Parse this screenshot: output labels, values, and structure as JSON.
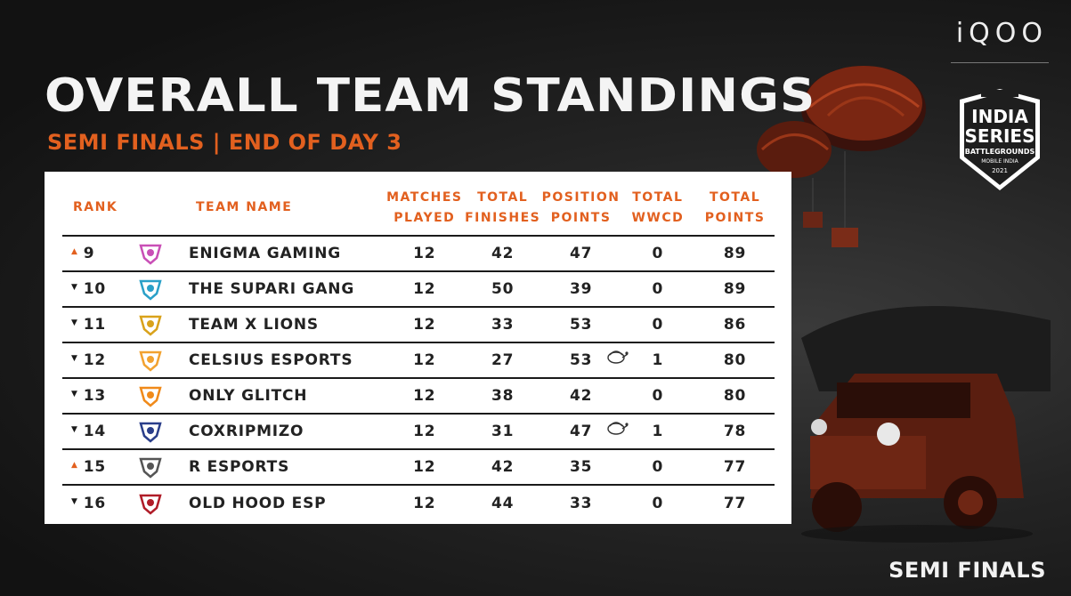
{
  "header": {
    "brand": "iQOO",
    "title": "OVERALL TEAM STANDINGS",
    "subtitle": "SEMI FINALS | END OF DAY 3",
    "badge_lines": [
      "INDIA",
      "SERIES",
      "BATTLEGROUNDS",
      "MOBILE INDIA",
      "2021"
    ]
  },
  "table": {
    "columns": {
      "rank": "RANK",
      "team": "TEAM NAME",
      "matches_played": [
        "MATCHES",
        "PLAYED"
      ],
      "total_finishes": [
        "TOTAL",
        "FINISHES"
      ],
      "position_points": [
        "POSITION",
        "POINTS"
      ],
      "total_wwcd": [
        "TOTAL",
        "WWCD"
      ],
      "total_points": [
        "TOTAL",
        "POINTS"
      ]
    },
    "rows": [
      {
        "trend": "up",
        "rank": "9",
        "team": "ENIGMA GAMING",
        "mp": "12",
        "tf": "42",
        "pp": "47",
        "wwcd": "0",
        "tp": "89",
        "chicken": false,
        "logo_color": "#c94fb6",
        "logo_icon": "enigma-logo-icon"
      },
      {
        "trend": "down",
        "rank": "10",
        "team": "THE SUPARI GANG",
        "mp": "12",
        "tf": "50",
        "pp": "39",
        "wwcd": "0",
        "tp": "89",
        "chicken": false,
        "logo_color": "#2aa0c8",
        "logo_icon": "tsg-logo-icon"
      },
      {
        "trend": "down",
        "rank": "11",
        "team": "TEAM X LIONS",
        "mp": "12",
        "tf": "33",
        "pp": "53",
        "wwcd": "0",
        "tp": "86",
        "chicken": false,
        "logo_color": "#d9a21b",
        "logo_icon": "lion-logo-icon"
      },
      {
        "trend": "down",
        "rank": "12",
        "team": "CELSIUS ESPORTS",
        "mp": "12",
        "tf": "27",
        "pp": "53",
        "wwcd": "1",
        "tp": "80",
        "chicken": true,
        "logo_color": "#f2a230",
        "logo_icon": "celsius-logo-icon"
      },
      {
        "trend": "down",
        "rank": "13",
        "team": "ONLY GLITCH",
        "mp": "12",
        "tf": "38",
        "pp": "42",
        "wwcd": "0",
        "tp": "80",
        "chicken": false,
        "logo_color": "#f08a1a",
        "logo_icon": "og-logo-icon"
      },
      {
        "trend": "down",
        "rank": "14",
        "team": "COXRIPMIZO",
        "mp": "12",
        "tf": "31",
        "pp": "47",
        "wwcd": "1",
        "tp": "78",
        "chicken": true,
        "logo_color": "#2a3e8a",
        "logo_icon": "cox-logo-icon"
      },
      {
        "trend": "up",
        "rank": "15",
        "team": "R ESPORTS",
        "mp": "12",
        "tf": "42",
        "pp": "35",
        "wwcd": "0",
        "tp": "77",
        "chicken": false,
        "logo_color": "#555555",
        "logo_icon": "r-esports-logo-icon"
      },
      {
        "trend": "down",
        "rank": "16",
        "team": "OLD HOOD ESP",
        "mp": "12",
        "tf": "44",
        "pp": "33",
        "wwcd": "0",
        "tp": "77",
        "chicken": false,
        "logo_color": "#b01c28",
        "logo_icon": "old-hood-logo-icon"
      }
    ]
  },
  "footer": {
    "label": "SEMI FINALS"
  },
  "colors": {
    "accent": "#e2601f",
    "background": "#1f1f1f",
    "panel": "#ffffff"
  }
}
